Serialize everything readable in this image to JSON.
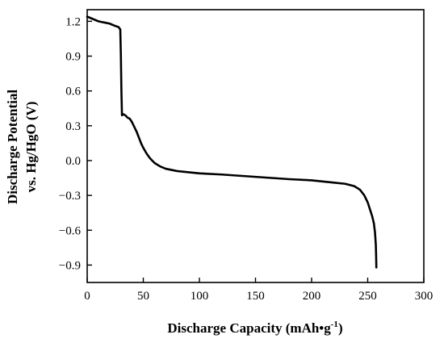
{
  "chart_data": {
    "type": "line",
    "title": "",
    "xlabel": "Discharge Capacity (mAh•g",
    "xlabel_superscript": "-1",
    "xlabel_suffix": ")",
    "ylabel_line1": "Discharge Potential",
    "ylabel_line2": "vs. Hg/HgO (V)",
    "xlim": [
      0,
      300
    ],
    "ylim": [
      -1.05,
      1.3
    ],
    "xticks": [
      0,
      50,
      100,
      150,
      200,
      250,
      300
    ],
    "yticks": [
      1.2,
      0.9,
      0.6,
      0.3,
      0.0,
      -0.3,
      -0.6,
      -0.9
    ],
    "ytick_labels": [
      "1.2",
      "0.9",
      "0.6",
      "0.3",
      "0.0",
      "−0.3",
      "−0.6",
      "−0.9"
    ],
    "grid": false,
    "legend": "none",
    "line_color": "#000000",
    "series": [
      {
        "x": [
          0,
          5,
          10,
          15,
          20,
          25,
          28,
          29.5,
          30,
          30.5,
          31,
          32,
          34,
          36,
          38,
          40,
          42,
          44,
          46,
          48,
          50,
          53,
          56,
          60,
          65,
          70,
          80,
          100,
          120,
          150,
          180,
          200,
          220,
          230,
          238,
          243,
          247,
          250,
          252,
          254,
          255.5,
          256.5,
          257.2,
          257.5,
          257.7
        ],
        "y": [
          1.24,
          1.22,
          1.2,
          1.19,
          1.18,
          1.16,
          1.15,
          1.13,
          0.92,
          0.6,
          0.39,
          0.4,
          0.39,
          0.37,
          0.36,
          0.33,
          0.29,
          0.25,
          0.2,
          0.15,
          0.11,
          0.06,
          0.02,
          -0.02,
          -0.05,
          -0.07,
          -0.09,
          -0.11,
          -0.12,
          -0.14,
          -0.16,
          -0.17,
          -0.19,
          -0.2,
          -0.22,
          -0.25,
          -0.3,
          -0.36,
          -0.42,
          -0.48,
          -0.54,
          -0.62,
          -0.72,
          -0.82,
          -0.92
        ]
      }
    ]
  }
}
